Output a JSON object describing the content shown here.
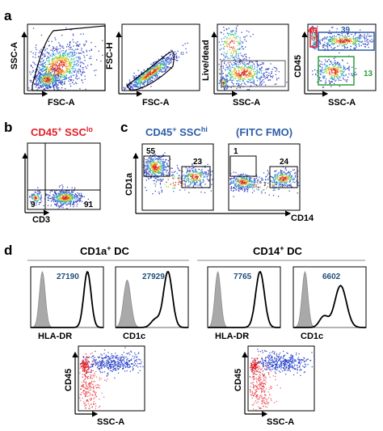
{
  "colors": {
    "red": "#e31e24",
    "blue": "#2e5fa8",
    "green": "#2e9e3a",
    "mfi": "#1f4e79",
    "fmo_gray": "#a9a9a9",
    "line": "#000000"
  },
  "panels": {
    "a": {
      "label": "a",
      "plots": [
        {
          "ylabel": "SSC-A",
          "xlabel": "FSC-A"
        },
        {
          "ylabel": "FSC-H",
          "xlabel": "FSC-A"
        },
        {
          "ylabel": "Live/dead",
          "xlabel": "SSC-A"
        },
        {
          "ylabel": "CD45",
          "xlabel": "SSC-A",
          "gate_red": "46",
          "gate_blue": "39",
          "gate_green": "13"
        }
      ]
    },
    "b": {
      "label": "b",
      "title_main": "CD45",
      "title_sup": "+",
      "title_rest": " SSC",
      "title_sub": "lo",
      "xlabel": "CD3",
      "q_left": "9",
      "q_right": "91"
    },
    "c": {
      "label": "c",
      "title1_main": "CD45",
      "title1_sup": "+",
      "title1_rest": " SSC",
      "title1_sup2": "hi",
      "title2": "(FITC FMO)",
      "ylabel": "CD1a",
      "xlabel": "CD14",
      "plot1_left": "55",
      "plot1_right": "23",
      "plot2_left": "1",
      "plot2_right": "24"
    },
    "d": {
      "label": "d",
      "group1_main": "CD1a",
      "group1_sup": "+",
      "group1_rest": " DC",
      "group2_main": "CD14",
      "group2_sup": "+",
      "group2_rest": " DC",
      "hist": [
        {
          "xlabel": "HLA-DR",
          "mfi": "27190"
        },
        {
          "xlabel": "CD1c",
          "mfi": "27929"
        },
        {
          "xlabel": "HLA-DR",
          "mfi": "7765"
        },
        {
          "xlabel": "CD1c",
          "mfi": "6602"
        }
      ],
      "backgating": [
        {
          "ylabel": "CD45",
          "xlabel": "SSC-A"
        },
        {
          "ylabel": "CD45",
          "xlabel": "SSC-A"
        }
      ]
    }
  }
}
